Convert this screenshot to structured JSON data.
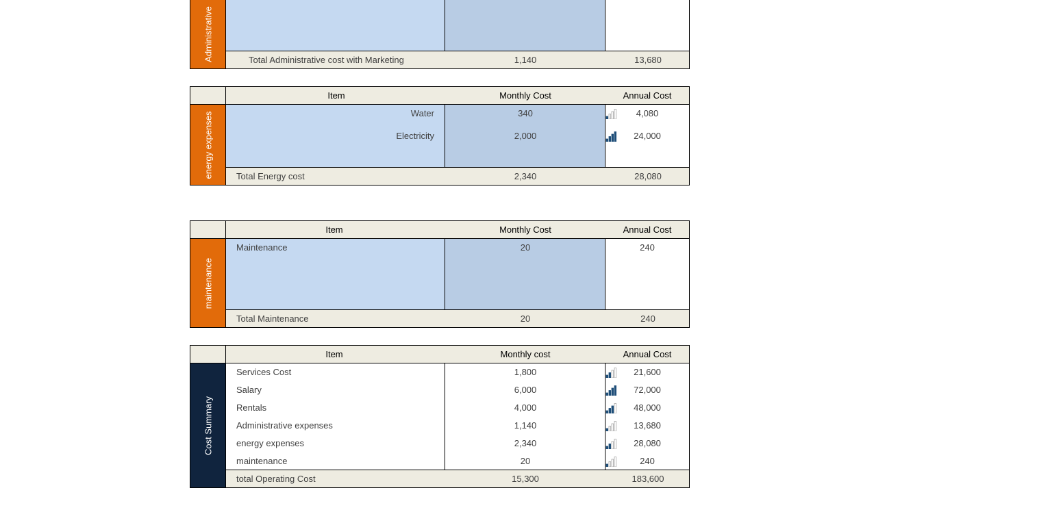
{
  "admin": {
    "side_label": "Administrative",
    "total": {
      "label": "Total Administrative cost with Marketing",
      "monthly": "1,140",
      "annual": "13,680"
    }
  },
  "energy": {
    "side_label": "energy expenses",
    "headers": {
      "item": "Item",
      "monthly": "Monthly Cost",
      "annual": "Annual Cost"
    },
    "rows": [
      {
        "item": "Water",
        "monthly": "340",
        "annual": "4,080",
        "signal_level": 1
      },
      {
        "item": "Electricity",
        "monthly": "2,000",
        "annual": "24,000",
        "signal_level": 4
      }
    ],
    "total": {
      "label": "Total Energy cost",
      "monthly": "2,340",
      "annual": "28,080"
    }
  },
  "maintenance": {
    "side_label": "maintenance",
    "headers": {
      "item": "Item",
      "monthly": "Monthly Cost",
      "annual": "Annual Cost"
    },
    "rows": [
      {
        "item": "Maintenance",
        "monthly": "20",
        "annual": "240"
      }
    ],
    "total": {
      "label": "Total Maintenance",
      "monthly": "20",
      "annual": "240"
    }
  },
  "summary": {
    "side_label": "Cost Summary",
    "headers": {
      "item": "Item",
      "monthly": "Monthly cost",
      "annual": "Annual Cost"
    },
    "rows": [
      {
        "item": "Services Cost",
        "monthly": "1,800",
        "annual": "21,600",
        "signal_level": 2
      },
      {
        "item": "Salary",
        "monthly": "6,000",
        "annual": "72,000",
        "signal_level": 4
      },
      {
        "item": "Rentals",
        "monthly": "4,000",
        "annual": "48,000",
        "signal_level": 3
      },
      {
        "item": "Administrative expenses",
        "monthly": "1,140",
        "annual": "13,680",
        "signal_level": 1
      },
      {
        "item": "energy expenses",
        "monthly": "2,340",
        "annual": "28,080",
        "signal_level": 2
      },
      {
        "item": "maintenance",
        "monthly": "20",
        "annual": "240",
        "signal_level": 1
      }
    ],
    "total": {
      "label": "total Operating Cost",
      "monthly": "15,300",
      "annual": "183,600"
    }
  },
  "colors": {
    "side_orange": "#e26b0a",
    "side_navy": "#10243e",
    "header_fill": "#eeece1",
    "item_fill": "#c5d9f1",
    "monthly_fill": "#b8cce4",
    "icon_active": "#1f4e79",
    "icon_inactive": "#a6a6a6"
  },
  "icons": {
    "rating": "signal-bars-icon"
  }
}
